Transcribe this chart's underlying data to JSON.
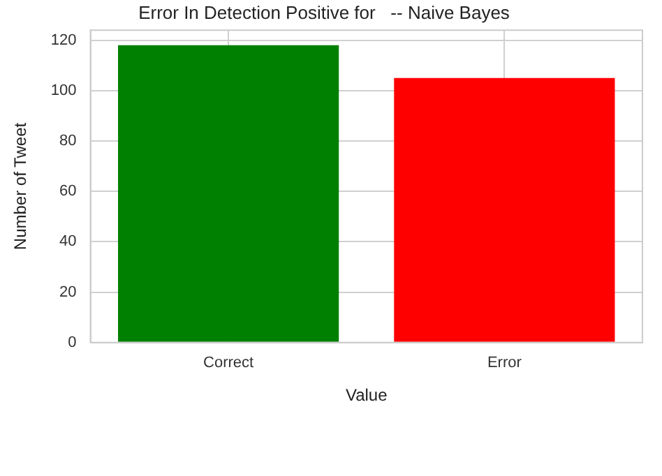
{
  "chart_data": {
    "type": "bar",
    "title": "Error In Detection Positive for   -- Naive Bayes",
    "xlabel": "Value",
    "ylabel": "Number of Tweet",
    "categories": [
      "Correct",
      "Error"
    ],
    "values": [
      118,
      105
    ],
    "colors": [
      "#008000",
      "#ff0000"
    ],
    "ylim": [
      0,
      124
    ],
    "yticks": [
      0,
      20,
      40,
      60,
      80,
      100,
      120
    ],
    "grid": true,
    "legend": false
  }
}
